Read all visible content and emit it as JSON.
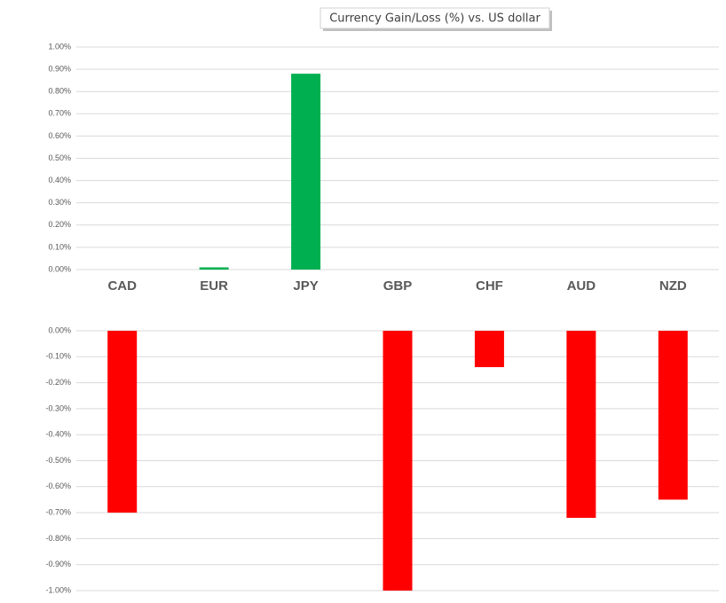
{
  "chart_data": [
    {
      "type": "bar",
      "title": "Currency  Gain/Loss (%) vs. US dollar",
      "categories": [
        "CAD",
        "EUR",
        "JPY",
        "GBP",
        "CHF",
        "AUD",
        "NZD"
      ],
      "values": [
        null,
        0.01,
        0.88,
        null,
        null,
        null,
        null
      ],
      "color": "#00b050",
      "ylim": [
        0,
        1
      ],
      "yticks": [
        {
          "value": 0,
          "label": "0.00%"
        },
        {
          "value": 0.1,
          "label": "0.10%"
        },
        {
          "value": 0.2,
          "label": "0.20%"
        },
        {
          "value": 0.3,
          "label": "0.30%"
        },
        {
          "value": 0.4,
          "label": "0.40%"
        },
        {
          "value": 0.5,
          "label": "0.50%"
        },
        {
          "value": 0.6,
          "label": "0.60%"
        },
        {
          "value": 0.7,
          "label": "0.70%"
        },
        {
          "value": 0.8,
          "label": "0.80%"
        },
        {
          "value": 0.9,
          "label": "0.90%"
        },
        {
          "value": 1,
          "label": "1.00%"
        }
      ],
      "grid": true
    },
    {
      "type": "bar",
      "values": [
        -0.7,
        null,
        null,
        -1.0,
        -0.14,
        -0.72,
        -0.65
      ],
      "color": "#ff0000",
      "ylim": [
        -1,
        0
      ],
      "yticks": [
        {
          "value": 0,
          "label": "0.00%"
        },
        {
          "value": -0.1,
          "label": "-0.10%"
        },
        {
          "value": -0.2,
          "label": "-0.20%"
        },
        {
          "value": -0.3,
          "label": "-0.30%"
        },
        {
          "value": -0.4,
          "label": "-0.40%"
        },
        {
          "value": -0.5,
          "label": "-0.50%"
        },
        {
          "value": -0.6,
          "label": "-0.60%"
        },
        {
          "value": -0.7,
          "label": "-0.70%"
        },
        {
          "value": -0.8,
          "label": "-0.80%"
        },
        {
          "value": -0.9,
          "label": "-0.90%"
        },
        {
          "value": -1,
          "label": "-1.00%"
        }
      ],
      "grid": true
    }
  ]
}
